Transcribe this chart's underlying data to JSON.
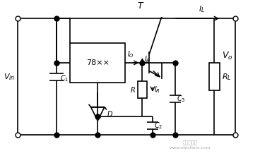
{
  "fig_width": 3.68,
  "fig_height": 2.21,
  "dpi": 100,
  "bg_color": "#ffffff",
  "line_color": "#000000",
  "line_width": 1.2
}
